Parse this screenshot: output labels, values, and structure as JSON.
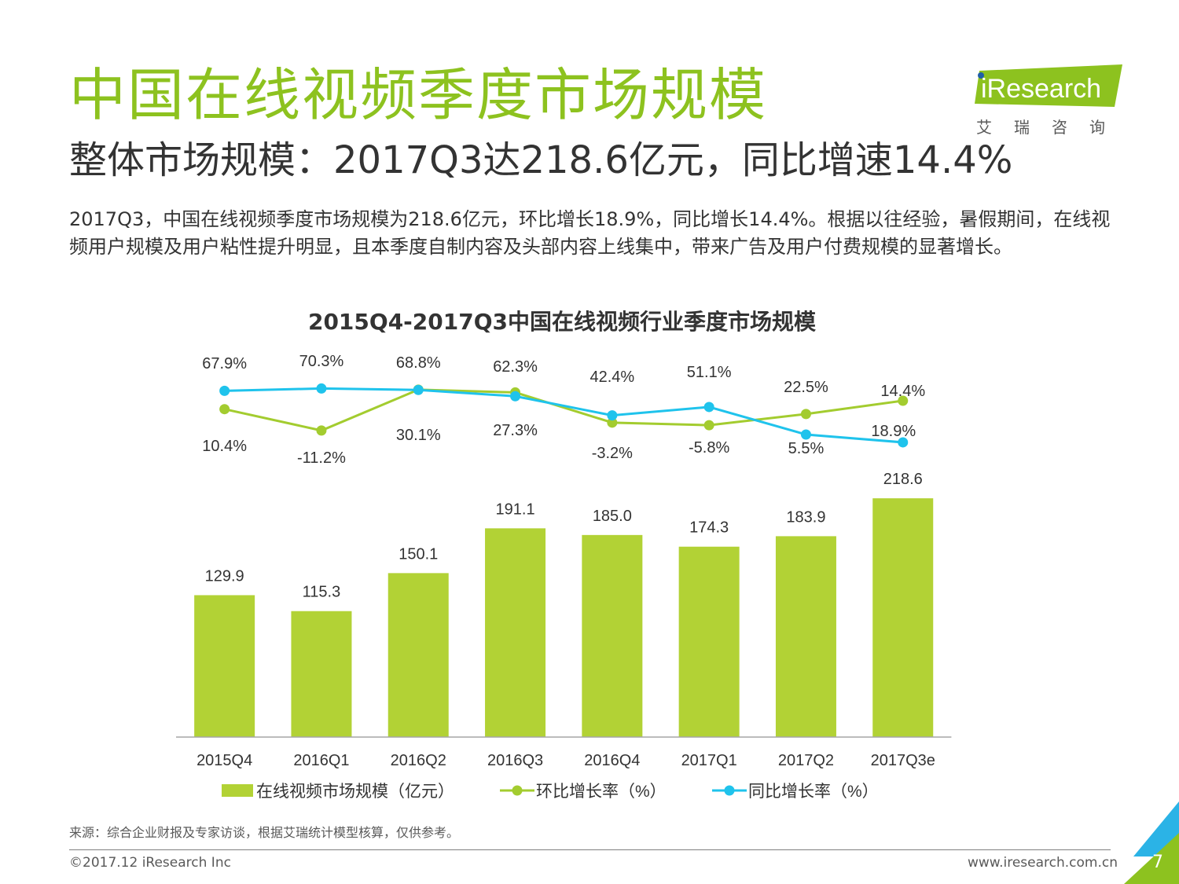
{
  "slide": {
    "title": "中国在线视频季度市场规模",
    "subtitle": "整体市场规模：2017Q3达218.6亿元，同比增速14.4%",
    "summary": "2017Q3，中国在线视频季度市场规模为218.6亿元，环比增长18.9%，同比增长14.4%。根据以往经验，暑假期间，在线视频用户规模及用户粘性提升明显，且本季度自制内容及头部内容上线集中，带来广告及用户付费规模的显著增长。",
    "source": "来源：综合企业财报及专家访谈，根据艾瑞统计模型核算，仅供参考。",
    "copyright": "©2017.12 iResearch Inc",
    "site": "www.iresearch.com.cn",
    "page_number": "7"
  },
  "brand": {
    "logo_text": "iResearch",
    "logo_sub": "艾瑞咨询",
    "colors": {
      "green": "#8dc21f",
      "bar": "#b2d235",
      "line_green": "#a3cc2f",
      "line_blue": "#1fc3ec",
      "corner_blue": "#2bb3e6"
    }
  },
  "chart_data": {
    "type": "bar",
    "title": "2015Q4-2017Q3中国在线视频行业季度市场规模",
    "categories": [
      "2015Q4",
      "2016Q1",
      "2016Q2",
      "2016Q3",
      "2016Q4",
      "2017Q1",
      "2017Q2",
      "2017Q3e"
    ],
    "series": [
      {
        "name": "在线视频市场规模（亿元）",
        "type": "bar",
        "values": [
          129.9,
          115.3,
          150.1,
          191.1,
          185.0,
          174.3,
          183.9,
          218.6
        ],
        "labels": [
          "129.9",
          "115.3",
          "150.1",
          "191.1",
          "185.0",
          "174.3",
          "183.9",
          "218.6"
        ]
      },
      {
        "name": "环比增长率（%）",
        "type": "line",
        "values": [
          10.4,
          -11.2,
          30.1,
          27.3,
          -3.2,
          -5.8,
          5.5,
          18.9
        ],
        "labels": [
          "10.4%",
          "-11.2%",
          "30.1%",
          "27.3%",
          "-3.2%",
          "-5.8%",
          "5.5%",
          "18.9%"
        ]
      },
      {
        "name": "同比增长率（%）",
        "type": "line",
        "values": [
          67.9,
          70.3,
          68.8,
          62.3,
          42.4,
          51.1,
          22.5,
          14.4
        ],
        "labels": [
          "67.9%",
          "70.3%",
          "68.8%",
          "62.3%",
          "42.4%",
          "51.1%",
          "22.5%",
          "14.4%"
        ]
      }
    ],
    "legend_position": "bottom",
    "grid": false
  }
}
